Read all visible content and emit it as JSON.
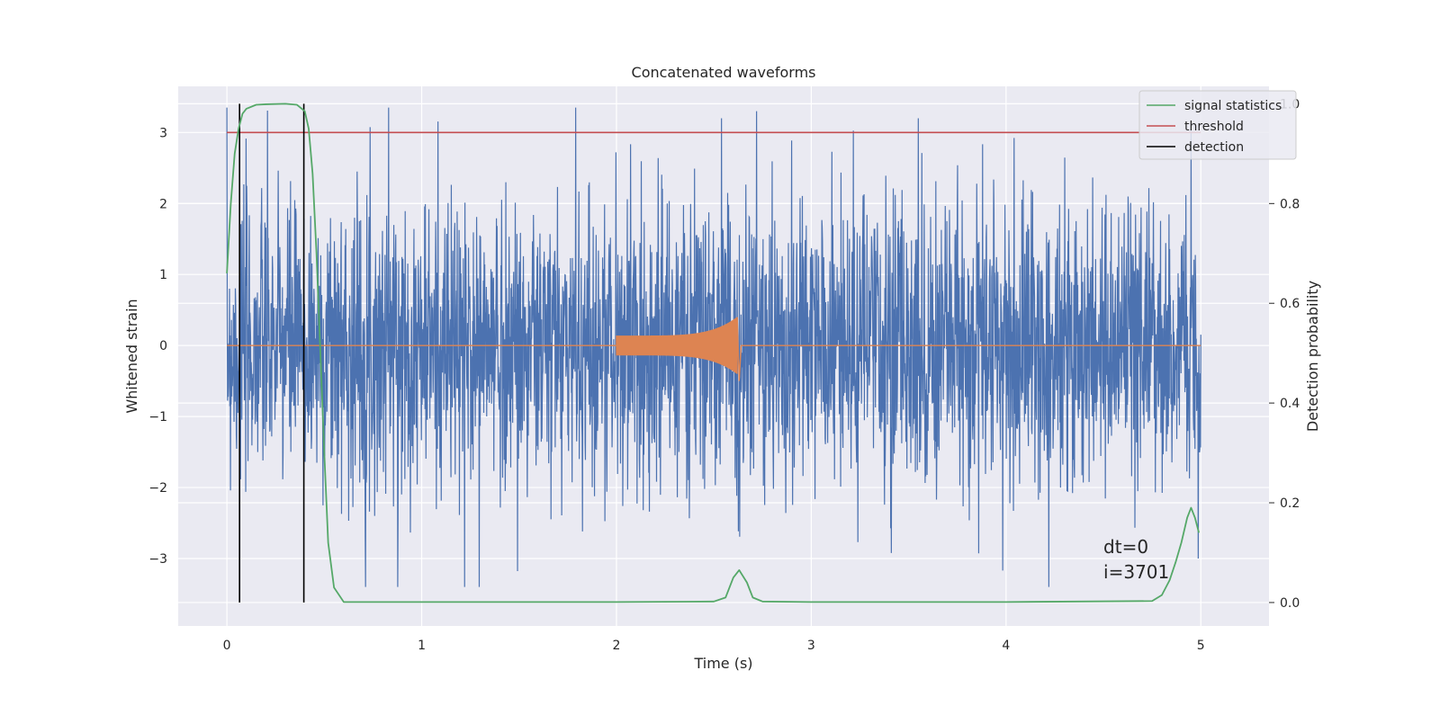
{
  "chart_data": {
    "type": "line",
    "title": "Concatenated waveforms",
    "xlabel": "Time (s)",
    "ylabel": "Whitened strain",
    "y2label": "Detection probability",
    "xlim": [
      -0.25,
      5.35
    ],
    "ylim": [
      -3.95,
      3.65
    ],
    "y2lim": [
      -0.047,
      1.035
    ],
    "xticks": [
      0,
      1,
      2,
      3,
      4,
      5
    ],
    "yticks": [
      -3,
      -2,
      -1,
      0,
      1,
      2,
      3
    ],
    "y2ticks": [
      0.0,
      0.2,
      0.4,
      0.6,
      0.8,
      1.0
    ],
    "xtick_labels": [
      "0",
      "1",
      "2",
      "3",
      "4",
      "5"
    ],
    "ytick_labels": [
      "−3",
      "−2",
      "−1",
      "0",
      "1",
      "2",
      "3"
    ],
    "y2tick_labels": [
      "0.0",
      "0.2",
      "0.4",
      "0.6",
      "0.8",
      "1.0"
    ],
    "grid": true,
    "legend_position": "top-right",
    "annotations": [
      "dt=0",
      "i=3701"
    ],
    "series": [
      {
        "name": "",
        "role": "whitened strain noise",
        "color": "#4c72b0",
        "x_range": [
          0,
          5
        ],
        "y_envelope": [
          -3.4,
          3.35
        ],
        "notable_spikes": [
          {
            "x": 0.83,
            "y": 3.35
          },
          {
            "x": 1.22,
            "y": -3.6
          },
          {
            "x": 1.79,
            "y": 3.35
          },
          {
            "x": 2.54,
            "y": 3.2
          },
          {
            "x": 2.72,
            "y": 3.3
          },
          {
            "x": 3.55,
            "y": 3.2
          },
          {
            "x": 4.22,
            "y": -3.4
          },
          {
            "x": 4.95,
            "y": 3.05
          }
        ]
      },
      {
        "name": "",
        "role": "injected waveform",
        "color": "#dd8452",
        "chirp": {
          "start": 2.0,
          "end": 2.62,
          "amp_start": 0.14,
          "amp_end": 0.4
        }
      },
      {
        "name": "signal statistics",
        "color": "#55a868",
        "axis": "right",
        "x": [
          0.0,
          0.02,
          0.04,
          0.06,
          0.08,
          0.1,
          0.15,
          0.2,
          0.3,
          0.36,
          0.4,
          0.42,
          0.44,
          0.46,
          0.48,
          0.5,
          0.52,
          0.55,
          0.6,
          1.0,
          2.0,
          2.5,
          2.56,
          2.6,
          2.63,
          2.67,
          2.7,
          2.75,
          3.0,
          4.0,
          4.75,
          4.8,
          4.84,
          4.87,
          4.9,
          4.93,
          4.95,
          4.97,
          4.99
        ],
        "y": [
          0.66,
          0.8,
          0.9,
          0.95,
          0.98,
          0.99,
          0.998,
          0.999,
          1.0,
          0.998,
          0.985,
          0.95,
          0.86,
          0.7,
          0.5,
          0.3,
          0.12,
          0.03,
          0.001,
          0.001,
          0.001,
          0.002,
          0.01,
          0.05,
          0.065,
          0.04,
          0.01,
          0.002,
          0.001,
          0.001,
          0.003,
          0.015,
          0.045,
          0.08,
          0.12,
          0.17,
          0.19,
          0.17,
          0.14
        ]
      },
      {
        "name": "threshold",
        "color": "#c44e52",
        "x": [
          0,
          5
        ],
        "y": [
          3,
          3
        ]
      },
      {
        "name": "detection",
        "color": "#000000",
        "x": [
          0.065,
          0.395
        ]
      }
    ]
  }
}
